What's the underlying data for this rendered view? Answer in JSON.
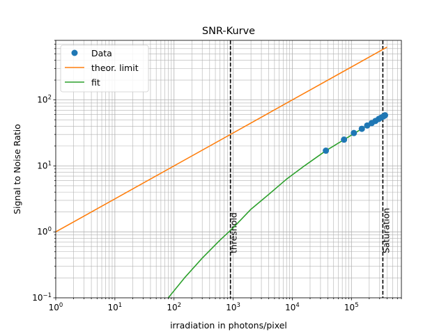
{
  "chart_data": {
    "type": "line",
    "title": "SNR-Kurve",
    "xlabel": "irradiation in photons/pixel",
    "ylabel": "Signal to Noise Ratio",
    "xscale": "log",
    "yscale": "log",
    "xlim": [
      1,
      700000
    ],
    "ylim": [
      0.1,
      800
    ],
    "grid": {
      "major": true,
      "minor": true
    },
    "legend_position": "top-left",
    "x_ticks": [
      {
        "base": "10",
        "exp": "0",
        "value": 1
      },
      {
        "base": "10",
        "exp": "1",
        "value": 10
      },
      {
        "base": "10",
        "exp": "2",
        "value": 100
      },
      {
        "base": "10",
        "exp": "3",
        "value": 1000
      },
      {
        "base": "10",
        "exp": "4",
        "value": 10000
      },
      {
        "base": "10",
        "exp": "5",
        "value": 100000
      }
    ],
    "y_ticks": [
      {
        "base": "10",
        "exp": "−1",
        "value": 0.1
      },
      {
        "base": "10",
        "exp": "0",
        "value": 1
      },
      {
        "base": "10",
        "exp": "1",
        "value": 10
      },
      {
        "base": "10",
        "exp": "2",
        "value": 100
      }
    ],
    "series": [
      {
        "name": "Data",
        "style": "markers",
        "color": "#1f77b4",
        "x": [
          37000,
          75000,
          110000,
          150000,
          185000,
          220000,
          255000,
          290000,
          320000,
          350000,
          370000
        ],
        "y": [
          17,
          25,
          31.5,
          36.5,
          41,
          44.5,
          48,
          51.5,
          54,
          56.5,
          58.5
        ]
      },
      {
        "name": "theor. limit",
        "style": "line",
        "color": "#ff7f0e",
        "x": [
          1,
          10,
          100,
          1000,
          10000,
          100000,
          400000
        ],
        "y": [
          1,
          3.16,
          10,
          31.6,
          100,
          316,
          632
        ]
      },
      {
        "name": "fit",
        "style": "line",
        "color": "#2ca02c",
        "x": [
          80,
          150,
          300,
          600,
          1000,
          2000,
          4000,
          8000,
          16000,
          37000,
          75000,
          150000,
          300000,
          400000
        ],
        "y": [
          0.1,
          0.2,
          0.4,
          0.75,
          1.15,
          2.2,
          3.7,
          6.3,
          10,
          17,
          25,
          36.5,
          51.5,
          59
        ]
      }
    ],
    "vlines": [
      {
        "x": 900,
        "label": "threshold"
      },
      {
        "x": 340000,
        "label": "Saturation"
      }
    ]
  }
}
